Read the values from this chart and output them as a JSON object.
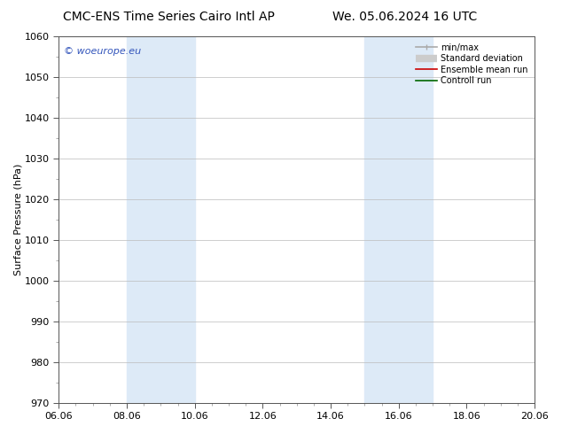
{
  "title_left": "CMC-ENS Time Series Cairo Intl AP",
  "title_right": "We. 05.06.2024 16 UTC",
  "ylabel": "Surface Pressure (hPa)",
  "ylim": [
    970,
    1060
  ],
  "yticks": [
    970,
    980,
    990,
    1000,
    1010,
    1020,
    1030,
    1040,
    1050,
    1060
  ],
  "xtick_labels": [
    "06.06",
    "08.06",
    "10.06",
    "12.06",
    "14.06",
    "16.06",
    "18.06",
    "20.06"
  ],
  "xtick_positions": [
    0,
    2,
    4,
    6,
    8,
    10,
    12,
    14
  ],
  "shaded_bands": [
    {
      "x_start": 2,
      "x_end": 4,
      "color": "#ddeaf7"
    },
    {
      "x_start": 9,
      "x_end": 11,
      "color": "#ddeaf7"
    }
  ],
  "watermark_text": "© woeurope.eu",
  "watermark_color": "#3355bb",
  "watermark_fontsize": 8,
  "legend_entries": [
    {
      "label": "min/max",
      "color": "#aaaaaa",
      "linewidth": 1.2
    },
    {
      "label": "Standard deviation",
      "color": "#cccccc",
      "linewidth": 6
    },
    {
      "label": "Ensemble mean run",
      "color": "#cc0000",
      "linewidth": 1.2
    },
    {
      "label": "Controll run",
      "color": "#006600",
      "linewidth": 1.2
    }
  ],
  "background_color": "#ffffff",
  "plot_bg_color": "#ffffff",
  "grid_color": "#bbbbbb",
  "title_fontsize": 10,
  "axis_label_fontsize": 8,
  "tick_fontsize": 8
}
